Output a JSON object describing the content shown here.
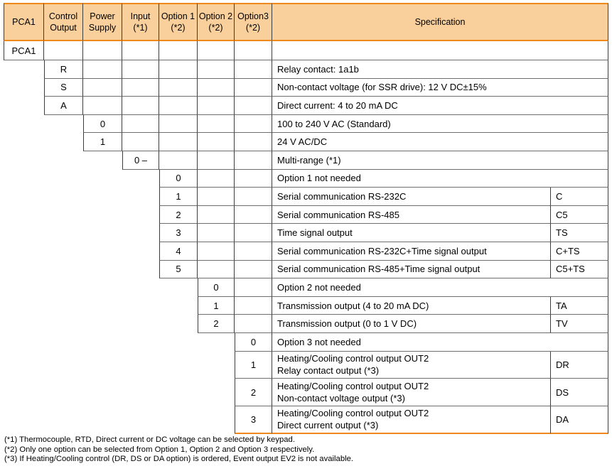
{
  "colors": {
    "header_fill": "#F9D09B",
    "accent_border": "#F0891C",
    "vertical_grid_line": "#3c3c3c",
    "horizontal_grid_line": "#6e6e6e",
    "text": "#000000"
  },
  "table": {
    "headers": [
      {
        "line1": "PCA1",
        "line2": ""
      },
      {
        "line1": "Control",
        "line2": "Output"
      },
      {
        "line1": "Power",
        "line2": "Supply"
      },
      {
        "line1": "Input",
        "line2": "(*1)"
      },
      {
        "line1": "Option 1",
        "line2": "(*2)"
      },
      {
        "line1": "Option 2",
        "line2": "(*2)"
      },
      {
        "line1": "Option3",
        "line2": "(*2)"
      },
      {
        "line1": "Specification",
        "line2": ""
      }
    ],
    "rows": [
      {
        "section": "model",
        "code": "PCA1",
        "spec": "",
        "suffix": ""
      },
      {
        "section": "control_output",
        "code": "R",
        "spec": "Relay contact: 1a1b",
        "suffix": ""
      },
      {
        "section": "control_output",
        "code": "S",
        "spec": "Non-contact voltage (for SSR drive): 12 V DC±15%",
        "suffix": ""
      },
      {
        "section": "control_output",
        "code": "A",
        "spec": "Direct current: 4 to 20 mA DC",
        "suffix": ""
      },
      {
        "section": "power_supply",
        "code": "0",
        "spec": "100 to 240 V AC (Standard)",
        "suffix": ""
      },
      {
        "section": "power_supply",
        "code": "1",
        "spec": "24 V AC/DC",
        "suffix": ""
      },
      {
        "section": "input",
        "code": "0 –",
        "spec": "Multi-range (*1)",
        "suffix": ""
      },
      {
        "section": "option1",
        "code": "0",
        "spec": "Option 1 not needed",
        "suffix": ""
      },
      {
        "section": "option1",
        "code": "1",
        "spec": "Serial communication RS-232C",
        "suffix": "C"
      },
      {
        "section": "option1",
        "code": "2",
        "spec": "Serial communication RS-485",
        "suffix": "C5"
      },
      {
        "section": "option1",
        "code": "3",
        "spec": "Time signal output",
        "suffix": "TS"
      },
      {
        "section": "option1",
        "code": "4",
        "spec": "Serial communication RS-232C+Time signal output",
        "suffix": "C+TS"
      },
      {
        "section": "option1",
        "code": "5",
        "spec": "Serial communication RS-485+Time signal output",
        "suffix": "C5+TS"
      },
      {
        "section": "option2",
        "code": "0",
        "spec": "Option 2 not needed",
        "suffix": ""
      },
      {
        "section": "option2",
        "code": "1",
        "spec": "Transmission output (4 to 20 mA DC)",
        "suffix": "TA"
      },
      {
        "section": "option2",
        "code": "2",
        "spec": "Transmission output (0 to 1 V DC)",
        "suffix": "TV"
      },
      {
        "section": "option3",
        "code": "0",
        "spec": "Option 3 not needed",
        "suffix": ""
      },
      {
        "section": "option3",
        "code": "1",
        "spec": "Heating/Cooling control output OUT2",
        "spec2": "Relay contact output (*3)",
        "suffix": "DR"
      },
      {
        "section": "option3",
        "code": "2",
        "spec": "Heating/Cooling control output OUT2",
        "spec2": "Non-contact voltage output (*3)",
        "suffix": "DS"
      },
      {
        "section": "option3",
        "code": "3",
        "spec": "Heating/Cooling control output OUT2",
        "spec2": "Direct current output (*3)",
        "suffix": "DA"
      }
    ]
  },
  "footnotes": [
    "(*1) Thermocouple, RTD, Direct current or DC voltage can be selected by keypad.",
    "(*2) Only one option can be selected from Option 1, Option 2 and Option 3 respectively.",
    "(*3) If Heating/Cooling control (DR, DS or DA option) is ordered, Event output EV2 is not available."
  ]
}
